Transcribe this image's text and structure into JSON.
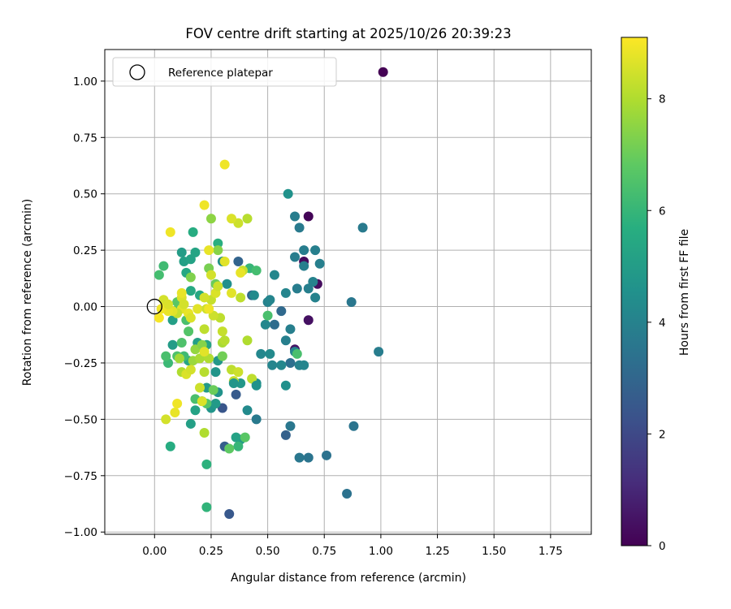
{
  "chart_data": {
    "type": "scatter",
    "title": "FOV centre drift starting at 2025/10/26 20:39:23",
    "xlabel": "Angular distance from reference (arcmin)",
    "ylabel": "Rotation from reference (arcmin)",
    "xlim": [
      -0.22,
      1.93
    ],
    "ylim": [
      -1.01,
      1.14
    ],
    "xticks": [
      0.0,
      0.25,
      0.5,
      0.75,
      1.0,
      1.25,
      1.5,
      1.75
    ],
    "xtick_labels": [
      "0.00",
      "0.25",
      "0.50",
      "0.75",
      "1.00",
      "1.25",
      "1.50",
      "1.75"
    ],
    "yticks": [
      -1.0,
      -0.75,
      -0.5,
      -0.25,
      0.0,
      0.25,
      0.5,
      0.75,
      1.0
    ],
    "ytick_labels": [
      "−1.00",
      "−0.75",
      "−0.50",
      "−0.25",
      "0.00",
      "0.25",
      "0.50",
      "0.75",
      "1.00"
    ],
    "grid": true,
    "legend": {
      "position": "top-left",
      "label": "Reference platepar"
    },
    "reference_point": {
      "x": 0.0,
      "y": 0.0
    },
    "colorbar": {
      "label": "Hours from first FF file",
      "range": [
        0,
        9.1
      ],
      "ticks": [
        0,
        2,
        4,
        6,
        8
      ],
      "tick_labels": [
        "0",
        "2",
        "4",
        "6",
        "8"
      ],
      "colormap": "viridis"
    },
    "series": [
      {
        "name": "Hours from first FF file",
        "points": [
          [
            1.01,
            1.04,
            0.0
          ],
          [
            0.68,
            0.4,
            0.1
          ],
          [
            0.66,
            0.2,
            0.2
          ],
          [
            0.72,
            0.1,
            0.3
          ],
          [
            0.68,
            -0.06,
            0.4
          ],
          [
            0.62,
            -0.19,
            0.5
          ],
          [
            0.33,
            -0.92,
            2.5
          ],
          [
            0.58,
            -0.57,
            2.8
          ],
          [
            0.36,
            -0.39,
            2.6
          ],
          [
            0.3,
            -0.45,
            2.4
          ],
          [
            0.31,
            -0.62,
            2.7
          ],
          [
            0.37,
            0.2,
            2.9
          ],
          [
            0.43,
            0.05,
            3.0
          ],
          [
            0.56,
            -0.02,
            3.1
          ],
          [
            0.53,
            -0.08,
            3.2
          ],
          [
            0.6,
            -0.25,
            3.3
          ],
          [
            0.85,
            -0.83,
            3.4
          ],
          [
            0.76,
            -0.66,
            3.4
          ],
          [
            0.68,
            -0.67,
            3.5
          ],
          [
            0.64,
            -0.67,
            3.6
          ],
          [
            0.88,
            -0.53,
            3.5
          ],
          [
            0.6,
            -0.53,
            3.6
          ],
          [
            0.45,
            -0.5,
            3.7
          ],
          [
            0.99,
            -0.2,
            3.8
          ],
          [
            0.87,
            0.02,
            3.6
          ],
          [
            0.92,
            0.35,
            3.7
          ],
          [
            0.62,
            0.4,
            3.8
          ],
          [
            0.64,
            0.35,
            3.7
          ],
          [
            0.71,
            0.25,
            3.9
          ],
          [
            0.66,
            0.25,
            3.8
          ],
          [
            0.73,
            0.19,
            3.9
          ],
          [
            0.62,
            0.22,
            3.8
          ],
          [
            0.66,
            0.18,
            3.9
          ],
          [
            0.7,
            0.11,
            4.0
          ],
          [
            0.68,
            0.08,
            3.9
          ],
          [
            0.71,
            0.04,
            4.0
          ],
          [
            0.63,
            0.08,
            3.8
          ],
          [
            0.58,
            0.06,
            4.1
          ],
          [
            0.5,
            0.02,
            4.0
          ],
          [
            0.51,
            0.03,
            4.1
          ],
          [
            0.53,
            0.14,
            4.2
          ],
          [
            0.49,
            -0.08,
            4.2
          ],
          [
            0.58,
            -0.15,
            3.9
          ],
          [
            0.6,
            -0.1,
            3.9
          ],
          [
            0.62,
            -0.2,
            4.1
          ],
          [
            0.64,
            -0.26,
            4.0
          ],
          [
            0.66,
            -0.26,
            4.1
          ],
          [
            0.56,
            -0.26,
            4.2
          ],
          [
            0.52,
            -0.26,
            4.1
          ],
          [
            0.51,
            -0.21,
            4.3
          ],
          [
            0.47,
            -0.21,
            4.2
          ],
          [
            0.45,
            -0.34,
            4.4
          ],
          [
            0.41,
            -0.46,
            4.3
          ],
          [
            0.3,
            0.2,
            4.4
          ],
          [
            0.32,
            0.1,
            4.5
          ],
          [
            0.44,
            0.05,
            4.3
          ],
          [
            0.58,
            -0.35,
            4.5
          ],
          [
            0.59,
            0.5,
            4.6
          ],
          [
            0.28,
            -0.38,
            4.6
          ],
          [
            0.28,
            -0.24,
            4.8
          ],
          [
            0.27,
            -0.29,
            4.7
          ],
          [
            0.25,
            -0.45,
            4.7
          ],
          [
            0.27,
            -0.43,
            4.9
          ],
          [
            0.21,
            -0.42,
            5.0
          ],
          [
            0.23,
            -0.36,
            4.9
          ],
          [
            0.38,
            -0.34,
            4.8
          ],
          [
            0.38,
            -0.59,
            5.0
          ],
          [
            0.36,
            -0.58,
            5.2
          ],
          [
            0.16,
            -0.52,
            5.1
          ],
          [
            0.18,
            -0.46,
            5.2
          ],
          [
            0.08,
            -0.17,
            5.0
          ],
          [
            0.15,
            -0.24,
            5.3
          ],
          [
            0.19,
            -0.16,
            5.1
          ],
          [
            0.21,
            -0.18,
            5.2
          ],
          [
            0.23,
            -0.17,
            5.3
          ],
          [
            0.08,
            -0.06,
            5.1
          ],
          [
            0.12,
            0.24,
            5.0
          ],
          [
            0.13,
            0.2,
            5.1
          ],
          [
            0.16,
            0.21,
            5.2
          ],
          [
            0.18,
            0.24,
            5.3
          ],
          [
            0.2,
            0.05,
            5.4
          ],
          [
            0.16,
            0.07,
            5.5
          ],
          [
            0.14,
            0.15,
            5.4
          ],
          [
            0.17,
            0.33,
            5.6
          ],
          [
            0.28,
            0.28,
            5.7
          ],
          [
            0.07,
            -0.62,
            5.6
          ],
          [
            0.23,
            -0.7,
            5.8
          ],
          [
            0.23,
            -0.89,
            5.9
          ],
          [
            0.37,
            -0.62,
            6.0
          ],
          [
            0.42,
            0.17,
            6.0
          ],
          [
            0.45,
            0.16,
            6.3
          ],
          [
            0.5,
            -0.04,
            6.4
          ],
          [
            0.63,
            -0.21,
            6.4
          ],
          [
            0.04,
            0.18,
            6.2
          ],
          [
            0.02,
            0.14,
            6.3
          ],
          [
            0.06,
            -0.25,
            6.1
          ],
          [
            0.05,
            -0.22,
            6.4
          ],
          [
            0.1,
            -0.22,
            6.5
          ],
          [
            0.13,
            -0.22,
            6.2
          ],
          [
            0.12,
            -0.16,
            6.5
          ],
          [
            0.15,
            -0.11,
            6.6
          ],
          [
            0.14,
            -0.06,
            6.4
          ],
          [
            0.09,
            -0.02,
            6.5
          ],
          [
            0.1,
            0.02,
            6.7
          ],
          [
            0.18,
            -0.41,
            6.4
          ],
          [
            0.23,
            -0.43,
            6.6
          ],
          [
            0.4,
            -0.58,
            6.7
          ],
          [
            0.33,
            -0.63,
            6.8
          ],
          [
            0.26,
            -0.37,
            7.0
          ],
          [
            0.3,
            -0.22,
            7.1
          ],
          [
            0.27,
            0.1,
            7.0
          ],
          [
            0.24,
            0.17,
            7.2
          ],
          [
            0.16,
            0.13,
            7.3
          ],
          [
            0.28,
            0.25,
            7.4
          ],
          [
            0.25,
            0.39,
            7.5
          ],
          [
            0.18,
            -0.19,
            7.6
          ],
          [
            0.21,
            -0.17,
            7.4
          ],
          [
            0.17,
            -0.24,
            7.7
          ],
          [
            0.11,
            -0.23,
            7.8
          ],
          [
            0.12,
            -0.29,
            8.0
          ],
          [
            0.2,
            -0.23,
            7.9
          ],
          [
            0.22,
            -0.29,
            8.1
          ],
          [
            0.24,
            -0.23,
            8.0
          ],
          [
            0.3,
            -0.16,
            7.9
          ],
          [
            0.34,
            -0.28,
            8.2
          ],
          [
            0.35,
            -0.33,
            8.3
          ],
          [
            0.37,
            -0.29,
            8.4
          ],
          [
            0.41,
            -0.15,
            8.0
          ],
          [
            0.29,
            -0.05,
            8.2
          ],
          [
            0.3,
            -0.11,
            8.3
          ],
          [
            0.31,
            -0.15,
            8.1
          ],
          [
            0.26,
            -0.04,
            8.4
          ],
          [
            0.25,
            0.03,
            8.3
          ],
          [
            0.22,
            0.04,
            8.5
          ],
          [
            0.27,
            0.06,
            8.6
          ],
          [
            0.28,
            0.09,
            8.4
          ],
          [
            0.25,
            0.14,
            8.5
          ],
          [
            0.38,
            0.04,
            8.2
          ],
          [
            0.34,
            0.06,
            8.7
          ],
          [
            0.39,
            0.16,
            8.3
          ],
          [
            0.41,
            0.39,
            8.1
          ],
          [
            0.37,
            0.37,
            8.4
          ],
          [
            0.34,
            0.39,
            8.6
          ],
          [
            0.31,
            0.2,
            8.7
          ],
          [
            0.38,
            0.15,
            8.8
          ],
          [
            0.24,
            0.25,
            8.8
          ],
          [
            0.22,
            0.45,
            8.9
          ],
          [
            0.31,
            0.63,
            8.9
          ],
          [
            0.07,
            0.33,
            8.9
          ],
          [
            0.12,
            0.04,
            8.6
          ],
          [
            0.12,
            0.06,
            8.8
          ],
          [
            0.12,
            -0.01,
            8.7
          ],
          [
            0.13,
            0.01,
            8.5
          ],
          [
            0.15,
            -0.03,
            8.8
          ],
          [
            0.16,
            -0.05,
            8.6
          ],
          [
            0.19,
            -0.01,
            8.7
          ],
          [
            0.23,
            -0.01,
            8.4
          ],
          [
            0.1,
            -0.03,
            8.3
          ],
          [
            0.08,
            -0.02,
            8.7
          ],
          [
            0.06,
            -0.02,
            8.8
          ],
          [
            0.04,
            0.03,
            8.5
          ],
          [
            0.03,
            -0.01,
            8.9
          ],
          [
            0.02,
            -0.05,
            9.0
          ],
          [
            0.06,
            0.01,
            8.6
          ],
          [
            0.22,
            -0.1,
            8.2
          ],
          [
            0.14,
            -0.3,
            8.6
          ],
          [
            0.16,
            -0.28,
            8.5
          ],
          [
            0.2,
            -0.36,
            8.4
          ],
          [
            0.21,
            -0.42,
            8.6
          ],
          [
            0.09,
            -0.47,
            8.8
          ],
          [
            0.1,
            -0.43,
            8.9
          ],
          [
            0.05,
            -0.5,
            8.5
          ],
          [
            0.22,
            -0.56,
            8.0
          ],
          [
            0.22,
            -0.2,
            8.7
          ],
          [
            0.43,
            -0.32,
            8.2
          ],
          [
            0.24,
            -0.01,
            8.9
          ],
          [
            0.45,
            -0.35,
            4.6
          ],
          [
            0.35,
            -0.34,
            4.7
          ]
        ]
      }
    ]
  }
}
